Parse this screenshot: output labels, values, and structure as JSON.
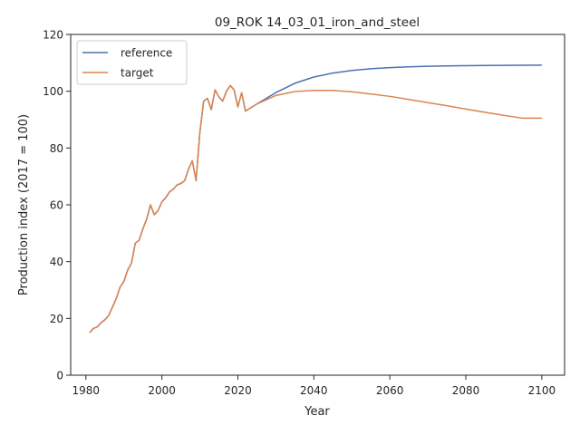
{
  "chart_data": {
    "type": "line",
    "title": "09_ROK 14_03_01_iron_and_steel",
    "xlabel": "Year",
    "ylabel": "Production index (2017 = 100)",
    "xlim": [
      1976,
      2106
    ],
    "ylim": [
      0,
      120
    ],
    "xticks": [
      1980,
      2000,
      2020,
      2040,
      2060,
      2080,
      2100
    ],
    "yticks": [
      0,
      20,
      40,
      60,
      80,
      100,
      120
    ],
    "grid": false,
    "legend_position": "upper left",
    "series": [
      {
        "name": "reference",
        "color": "#4c72b0",
        "x": [
          1981,
          1982,
          1983,
          1984,
          1985,
          1986,
          1987,
          1988,
          1989,
          1990,
          1991,
          1992,
          1993,
          1994,
          1995,
          1996,
          1997,
          1998,
          1999,
          2000,
          2001,
          2002,
          2003,
          2004,
          2005,
          2006,
          2007,
          2008,
          2009,
          2010,
          2011,
          2012,
          2013,
          2014,
          2015,
          2016,
          2017,
          2018,
          2019,
          2020,
          2021,
          2022,
          2025,
          2030,
          2035,
          2040,
          2045,
          2050,
          2055,
          2060,
          2065,
          2070,
          2075,
          2080,
          2085,
          2090,
          2095,
          2100
        ],
        "y": [
          15,
          16.5,
          17,
          18.5,
          19.5,
          21,
          24,
          27,
          31,
          33,
          37,
          39.5,
          46.5,
          47.5,
          51.5,
          55,
          60,
          56.5,
          58,
          61,
          62.5,
          64.5,
          65.5,
          67,
          67.5,
          68.5,
          72.5,
          75.5,
          68.5,
          85.5,
          96.5,
          97.5,
          93.5,
          100.5,
          98,
          96.5,
          100,
          102,
          100.5,
          94.5,
          99.5,
          93,
          95.5,
          99.5,
          102.8,
          105,
          106.4,
          107.3,
          107.9,
          108.3,
          108.6,
          108.8,
          108.9,
          109,
          109.05,
          109.1,
          109.15,
          109.2
        ]
      },
      {
        "name": "target",
        "color": "#dd8452",
        "x": [
          1981,
          1982,
          1983,
          1984,
          1985,
          1986,
          1987,
          1988,
          1989,
          1990,
          1991,
          1992,
          1993,
          1994,
          1995,
          1996,
          1997,
          1998,
          1999,
          2000,
          2001,
          2002,
          2003,
          2004,
          2005,
          2006,
          2007,
          2008,
          2009,
          2010,
          2011,
          2012,
          2013,
          2014,
          2015,
          2016,
          2017,
          2018,
          2019,
          2020,
          2021,
          2022,
          2025,
          2030,
          2035,
          2040,
          2045,
          2050,
          2055,
          2060,
          2065,
          2070,
          2075,
          2080,
          2085,
          2090,
          2095,
          2100
        ],
        "y": [
          15,
          16.5,
          17,
          18.5,
          19.5,
          21,
          24,
          27,
          31,
          33,
          37,
          39.5,
          46.5,
          47.5,
          51.5,
          55,
          60,
          56.5,
          58,
          61,
          62.5,
          64.5,
          65.5,
          67,
          67.5,
          68.5,
          72.5,
          75.5,
          68.5,
          85.5,
          96.5,
          97.5,
          93.5,
          100.5,
          98,
          96.5,
          100,
          102,
          100.5,
          94.5,
          99.5,
          93,
          95.5,
          98.5,
          99.9,
          100.3,
          100.3,
          99.8,
          99,
          98.2,
          97.1,
          96,
          94.9,
          93.7,
          92.6,
          91.5,
          90.5,
          90.5
        ]
      }
    ]
  }
}
